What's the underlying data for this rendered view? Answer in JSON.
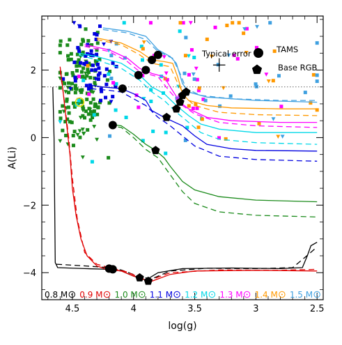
{
  "chart_data": {
    "type": "line",
    "xlabel": "log(g)",
    "ylabel": "A(Li)",
    "xlim": [
      4.75,
      2.45
    ],
    "ylim": [
      -4.8,
      3.6
    ],
    "x_reversed": true,
    "x_ticks": [
      4.5,
      4,
      3.5,
      3,
      2.5
    ],
    "x_tick_labels": [
      "4.5",
      "4",
      "3.5",
      "3",
      "2.5"
    ],
    "y_ticks": [
      -4,
      -2,
      0,
      2
    ],
    "y_tick_labels": [
      "−4",
      "−2",
      "0",
      "2"
    ],
    "grid": false,
    "reference_line": {
      "y": 1.5,
      "style": "dotted"
    },
    "legend": {
      "placement": "top-right",
      "error_label": "Typical error",
      "error_bar": {
        "x": 3.3,
        "y": 2.15,
        "dx": 0.05,
        "dy": 0.2
      },
      "tams_label": "TAMS",
      "rgb_label": "Base RGB"
    },
    "mass_labels": [
      {
        "text": "0.8 M",
        "color": "#000000"
      },
      {
        "text": "0.9 M",
        "color": "#e00000"
      },
      {
        "text": "1.0 M",
        "color": "#1a8a1a"
      },
      {
        "text": "1.1 M",
        "color": "#0000e0"
      },
      {
        "text": "1.2 M",
        "color": "#00d8e8"
      },
      {
        "text": "1.3 M",
        "color": "#ff00ff"
      },
      {
        "text": "1.4 M",
        "color": "#ff9900"
      },
      {
        "text": "1.5 M",
        "color": "#3fa0e0"
      }
    ],
    "series": [
      {
        "mass": "0.8",
        "color": "#000000",
        "solid": [
          [
            4.66,
            1.5
          ],
          [
            4.65,
            0.0
          ],
          [
            4.64,
            -3.7
          ],
          [
            4.62,
            -3.85
          ],
          [
            4.4,
            -3.88
          ],
          [
            4.2,
            -3.9
          ],
          [
            4.1,
            -3.95
          ],
          [
            4.0,
            -4.1
          ],
          [
            3.9,
            -4.22
          ],
          [
            3.8,
            -4.0
          ],
          [
            3.6,
            -3.88
          ],
          [
            3.2,
            -3.86
          ],
          [
            2.8,
            -3.88
          ],
          [
            2.62,
            -3.85
          ],
          [
            2.58,
            -3.5
          ],
          [
            2.55,
            -3.2
          ],
          [
            2.5,
            -3.1
          ]
        ],
        "dashed": [
          [
            4.63,
            -3.75
          ],
          [
            4.4,
            -3.8
          ],
          [
            4.2,
            -3.85
          ],
          [
            4.1,
            -3.92
          ],
          [
            3.95,
            -4.12
          ],
          [
            3.85,
            -4.18
          ],
          [
            3.7,
            -3.95
          ],
          [
            3.4,
            -3.87
          ],
          [
            3.0,
            -3.88
          ],
          [
            2.7,
            -3.85
          ],
          [
            2.6,
            -3.55
          ],
          [
            2.52,
            -3.3
          ]
        ],
        "markers": [
          {
            "x": 4.17,
            "y": -3.9,
            "type": "TAMS"
          },
          {
            "x": 3.88,
            "y": -4.25,
            "type": "RGB"
          }
        ]
      },
      {
        "mass": "0.9",
        "color": "#e00000",
        "solid": [
          [
            4.6,
            2.1
          ],
          [
            4.58,
            1.5
          ],
          [
            4.55,
            0.5
          ],
          [
            4.52,
            -0.5
          ],
          [
            4.5,
            -1.5
          ],
          [
            4.47,
            -2.3
          ],
          [
            4.43,
            -3.0
          ],
          [
            4.38,
            -3.5
          ],
          [
            4.3,
            -3.8
          ],
          [
            4.22,
            -3.9
          ],
          [
            4.1,
            -3.95
          ],
          [
            4.0,
            -4.1
          ],
          [
            3.92,
            -4.2
          ],
          [
            3.85,
            -4.25
          ],
          [
            3.7,
            -4.05
          ],
          [
            3.5,
            -3.95
          ],
          [
            3.0,
            -3.93
          ],
          [
            2.5,
            -3.95
          ]
        ],
        "dashed": [
          [
            4.6,
            2.0
          ],
          [
            4.57,
            1.2
          ],
          [
            4.53,
            0.0
          ],
          [
            4.5,
            -1.2
          ],
          [
            4.46,
            -2.4
          ],
          [
            4.4,
            -3.4
          ],
          [
            4.3,
            -3.75
          ],
          [
            4.2,
            -3.85
          ],
          [
            4.05,
            -3.98
          ],
          [
            3.95,
            -4.15
          ],
          [
            3.85,
            -4.2
          ],
          [
            3.7,
            -4.0
          ],
          [
            3.3,
            -3.92
          ],
          [
            2.8,
            -3.93
          ],
          [
            2.5,
            -3.9
          ]
        ],
        "markers": [
          {
            "x": 4.2,
            "y": -3.88,
            "type": "TAMS"
          },
          {
            "x": 3.95,
            "y": -4.15,
            "type": "RGB"
          }
        ]
      },
      {
        "mass": "1.0",
        "color": "#1a8a1a",
        "solid": [
          [
            4.2,
            0.4
          ],
          [
            4.1,
            0.35
          ],
          [
            4.0,
            0.1
          ],
          [
            3.9,
            -0.2
          ],
          [
            3.82,
            -0.38
          ],
          [
            3.75,
            -0.6
          ],
          [
            3.7,
            -0.85
          ],
          [
            3.6,
            -1.3
          ],
          [
            3.5,
            -1.55
          ],
          [
            3.3,
            -1.75
          ],
          [
            3.0,
            -1.85
          ],
          [
            2.5,
            -1.9
          ]
        ],
        "dashed": [
          [
            4.2,
            0.35
          ],
          [
            4.1,
            0.3
          ],
          [
            4.0,
            0.0
          ],
          [
            3.9,
            -0.35
          ],
          [
            3.8,
            -0.6
          ],
          [
            3.7,
            -1.1
          ],
          [
            3.6,
            -1.6
          ],
          [
            3.5,
            -1.95
          ],
          [
            3.3,
            -2.2
          ],
          [
            3.0,
            -2.3
          ],
          [
            2.5,
            -2.35
          ]
        ],
        "markers": [
          {
            "x": 4.17,
            "y": 0.37,
            "type": "TAMS"
          },
          {
            "x": 3.82,
            "y": -0.38,
            "type": "RGB"
          }
        ]
      },
      {
        "mass": "1.1",
        "color": "#0000e0",
        "solid": [
          [
            4.35,
            1.55
          ],
          [
            4.25,
            1.5
          ],
          [
            4.1,
            1.45
          ],
          [
            4.0,
            1.3
          ],
          [
            3.9,
            1.1
          ],
          [
            3.85,
            0.8
          ],
          [
            3.75,
            0.6
          ],
          [
            3.6,
            0.35
          ],
          [
            3.5,
            0.05
          ],
          [
            3.4,
            -0.2
          ],
          [
            3.2,
            -0.33
          ],
          [
            3.0,
            -0.38
          ],
          [
            2.5,
            -0.4
          ]
        ],
        "dashed": [
          [
            4.35,
            1.45
          ],
          [
            4.2,
            1.4
          ],
          [
            4.1,
            1.35
          ],
          [
            4.0,
            1.15
          ],
          [
            3.9,
            0.95
          ],
          [
            3.8,
            0.6
          ],
          [
            3.7,
            0.35
          ],
          [
            3.6,
            0.05
          ],
          [
            3.5,
            -0.25
          ],
          [
            3.3,
            -0.55
          ],
          [
            3.0,
            -0.65
          ],
          [
            2.5,
            -0.7
          ]
        ],
        "markers": [
          {
            "x": 4.09,
            "y": 1.45,
            "type": "TAMS"
          },
          {
            "x": 3.73,
            "y": 0.6,
            "type": "RGB"
          }
        ]
      },
      {
        "mass": "1.2",
        "color": "#00d8e8",
        "solid": [
          [
            4.45,
            2.5
          ],
          [
            4.3,
            2.4
          ],
          [
            4.1,
            2.2
          ],
          [
            3.95,
            1.85
          ],
          [
            3.85,
            1.5
          ],
          [
            3.75,
            1.3
          ],
          [
            3.65,
            0.95
          ],
          [
            3.55,
            0.65
          ],
          [
            3.45,
            0.4
          ],
          [
            3.3,
            0.25
          ],
          [
            3.0,
            0.15
          ],
          [
            2.5,
            0.15
          ]
        ],
        "dashed": [
          [
            4.45,
            2.45
          ],
          [
            4.3,
            2.3
          ],
          [
            4.1,
            2.05
          ],
          [
            3.95,
            1.7
          ],
          [
            3.85,
            1.35
          ],
          [
            3.75,
            1.1
          ],
          [
            3.65,
            0.75
          ],
          [
            3.55,
            0.45
          ],
          [
            3.45,
            0.15
          ],
          [
            3.3,
            -0.05
          ],
          [
            3.0,
            -0.15
          ],
          [
            2.5,
            -0.2
          ]
        ],
        "markers": [
          {
            "x": 3.96,
            "y": 1.85,
            "type": "TAMS"
          },
          {
            "x": 3.65,
            "y": 0.85,
            "type": "RGB"
          }
        ]
      },
      {
        "mass": "1.3",
        "color": "#ff00ff",
        "solid": [
          [
            4.4,
            2.75
          ],
          [
            4.2,
            2.6
          ],
          [
            4.05,
            2.35
          ],
          [
            3.95,
            2.05
          ],
          [
            3.85,
            1.9
          ],
          [
            3.75,
            1.8
          ],
          [
            3.7,
            1.5
          ],
          [
            3.62,
            1.05
          ],
          [
            3.55,
            0.85
          ],
          [
            3.4,
            0.6
          ],
          [
            3.2,
            0.5
          ],
          [
            2.8,
            0.45
          ],
          [
            2.5,
            0.45
          ]
        ],
        "dashed": [
          [
            4.4,
            2.7
          ],
          [
            4.2,
            2.55
          ],
          [
            4.05,
            2.25
          ],
          [
            3.95,
            1.95
          ],
          [
            3.8,
            1.8
          ],
          [
            3.7,
            1.35
          ],
          [
            3.6,
            0.95
          ],
          [
            3.5,
            0.7
          ],
          [
            3.3,
            0.45
          ],
          [
            3.0,
            0.35
          ],
          [
            2.5,
            0.3
          ]
        ],
        "markers": [
          {
            "x": 3.9,
            "y": 2.0,
            "type": "TAMS"
          },
          {
            "x": 3.62,
            "y": 1.05,
            "type": "RGB"
          }
        ]
      },
      {
        "mass": "1.4",
        "color": "#ff9900",
        "solid": [
          [
            4.3,
            2.95
          ],
          [
            4.1,
            2.8
          ],
          [
            3.95,
            2.55
          ],
          [
            3.85,
            2.3
          ],
          [
            3.75,
            2.25
          ],
          [
            3.68,
            2.2
          ],
          [
            3.64,
            1.8
          ],
          [
            3.6,
            1.3
          ],
          [
            3.55,
            1.1
          ],
          [
            3.4,
            0.95
          ],
          [
            3.2,
            0.88
          ],
          [
            2.8,
            0.85
          ],
          [
            2.5,
            0.85
          ]
        ],
        "dashed": [
          [
            4.3,
            2.9
          ],
          [
            4.1,
            2.75
          ],
          [
            3.95,
            2.45
          ],
          [
            3.85,
            2.2
          ],
          [
            3.7,
            2.1
          ],
          [
            3.65,
            1.7
          ],
          [
            3.58,
            1.2
          ],
          [
            3.5,
            0.95
          ],
          [
            3.3,
            0.75
          ],
          [
            3.0,
            0.68
          ],
          [
            2.5,
            0.65
          ]
        ],
        "markers": [
          {
            "x": 3.85,
            "y": 2.3,
            "type": "TAMS"
          },
          {
            "x": 3.6,
            "y": 1.25,
            "type": "RGB"
          }
        ]
      },
      {
        "mass": "1.5",
        "color": "#3fa0e0",
        "solid": [
          [
            4.25,
            3.25
          ],
          [
            4.05,
            3.15
          ],
          [
            3.9,
            3.0
          ],
          [
            3.8,
            2.6
          ],
          [
            3.7,
            2.4
          ],
          [
            3.65,
            2.2
          ],
          [
            3.6,
            1.6
          ],
          [
            3.55,
            1.35
          ],
          [
            3.4,
            1.2
          ],
          [
            3.0,
            1.1
          ],
          [
            2.5,
            1.05
          ]
        ],
        "dashed": [
          [
            4.25,
            3.2
          ],
          [
            4.05,
            3.1
          ],
          [
            3.9,
            2.9
          ],
          [
            3.8,
            2.55
          ],
          [
            3.68,
            2.35
          ],
          [
            3.62,
            1.9
          ],
          [
            3.57,
            1.45
          ],
          [
            3.45,
            1.25
          ],
          [
            3.2,
            1.15
          ],
          [
            2.8,
            1.1
          ],
          [
            2.5,
            1.1
          ]
        ],
        "markers": [
          {
            "x": 3.8,
            "y": 2.45,
            "type": "TAMS"
          },
          {
            "x": 3.57,
            "y": 1.35,
            "type": "RGB"
          }
        ]
      }
    ]
  }
}
